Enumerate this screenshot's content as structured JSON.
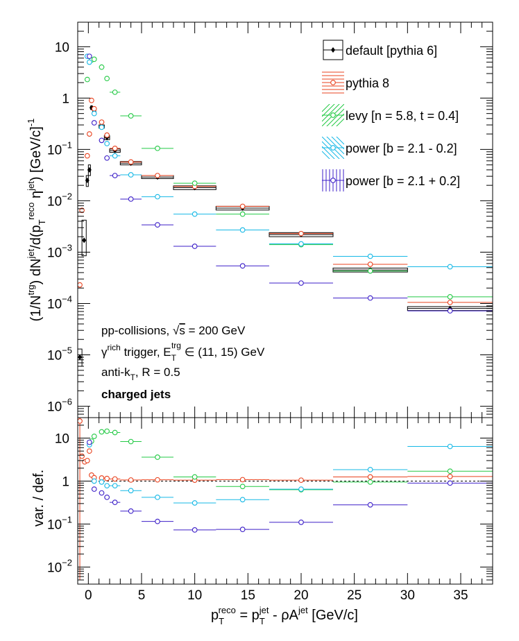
{
  "chart_data": [
    {
      "type": "scatter",
      "panel": "main",
      "ylabel": "(1/N^trg) dN^jet/d(p_T^reco η^jet) [GeV/c]^-1",
      "yscale": "log",
      "ylim": [
        6e-07,
        30
      ],
      "xlim": [
        -1,
        38
      ],
      "yticks": [
        {
          "v": 1e-06,
          "label": "10",
          "exp": "−6"
        },
        {
          "v": 1e-05,
          "label": "10",
          "exp": "−5"
        },
        {
          "v": 0.0001,
          "label": "10",
          "exp": "−4"
        },
        {
          "v": 0.001,
          "label": "10",
          "exp": "−3"
        },
        {
          "v": 0.01,
          "label": "10",
          "exp": "−2"
        },
        {
          "v": 0.1,
          "label": "10",
          "exp": "−1"
        },
        {
          "v": 1,
          "label": "1",
          "exp": ""
        },
        {
          "v": 10,
          "label": "10",
          "exp": ""
        }
      ],
      "legend": {
        "placement": "top-right",
        "entries": [
          {
            "label": "default [pythia 6]",
            "series": 0
          },
          {
            "label": "pythia 8",
            "series": 1
          },
          {
            "label": "levy [n = 5.8, t = 0.4]",
            "series": 2
          },
          {
            "label": "power [b = 2.1 - 0.2]",
            "series": 3
          },
          {
            "label": "power [b = 2.1 + 0.2]",
            "series": 4
          }
        ]
      },
      "annotations": [
        {
          "text": "pp-collisions, √s = 200 GeV"
        },
        {
          "text": "γ^rich trigger, E_T^trg ∈ (11, 15) GeV"
        },
        {
          "text": "anti-k_T, R = 0.5"
        },
        {
          "text": "charged jets",
          "bold": true
        }
      ],
      "series": [
        {
          "name": "default [pythia 6]",
          "color": "#000000",
          "marker": "filled-diamond",
          "points": [
            {
              "x": -0.8,
              "y": 9e-06,
              "xerr": 0.2,
              "sys": [
                6e-06,
                1.3e-05
              ]
            },
            {
              "x": -0.4,
              "y": 0.0017,
              "xerr": 0.2,
              "sys": [
                0.00085,
                0.0042
              ]
            },
            {
              "x": -0.1,
              "y": 0.025,
              "xerr": 0.1,
              "sys": [
                0.019,
                0.031
              ]
            },
            {
              "x": 0.1,
              "y": 0.04,
              "xerr": 0.1,
              "sys": [
                0.031,
                0.05
              ]
            },
            {
              "x": 0.3,
              "y": 0.65,
              "xerr": 0.1,
              "sys": [
                0.6,
                0.7
              ]
            },
            {
              "x": 0.55,
              "y": 0.52,
              "xerr": 0.15,
              "sys": [
                0.48,
                0.56
              ]
            },
            {
              "x": 1.25,
              "y": 0.28,
              "xerr": 0.25,
              "sys": [
                0.26,
                0.3
              ]
            },
            {
              "x": 1.75,
              "y": 0.17,
              "xerr": 0.25,
              "sys": [
                0.155,
                0.185
              ]
            },
            {
              "x": 2.5,
              "y": 0.095,
              "xerr": 0.5,
              "sys": [
                0.088,
                0.102
              ]
            },
            {
              "x": 4.0,
              "y": 0.054,
              "xerr": 1.0,
              "sys": [
                0.05,
                0.058
              ]
            },
            {
              "x": 6.5,
              "y": 0.029,
              "xerr": 1.5,
              "sys": [
                0.027,
                0.031
              ]
            },
            {
              "x": 10.0,
              "y": 0.018,
              "xerr": 2.0,
              "sys": [
                0.0165,
                0.0195
              ]
            },
            {
              "x": 14.5,
              "y": 0.0072,
              "xerr": 2.5,
              "sys": [
                0.0066,
                0.0078
              ]
            },
            {
              "x": 20.0,
              "y": 0.0022,
              "xerr": 3.0,
              "sys": [
                0.002,
                0.0024
              ]
            },
            {
              "x": 26.5,
              "y": 0.00045,
              "xerr": 3.5,
              "sys": [
                0.00041,
                0.00049
              ]
            },
            {
              "x": 34.0,
              "y": 8e-05,
              "xerr": 4.0,
              "sys": [
                7.3e-05,
                8.7e-05
              ]
            }
          ]
        },
        {
          "name": "pythia 8",
          "color": "#e8401c",
          "marker": "open-circle",
          "points": [
            {
              "x": -0.8,
              "y": 0.00023,
              "xerr": 0.2
            },
            {
              "x": -0.6,
              "y": 0.0065,
              "xerr": 0.2
            },
            {
              "x": -0.1,
              "y": 0.075,
              "xerr": 0.1
            },
            {
              "x": 0.1,
              "y": 0.2,
              "xerr": 0.1
            },
            {
              "x": 0.3,
              "y": 0.9,
              "xerr": 0.1
            },
            {
              "x": 0.55,
              "y": 0.62,
              "xerr": 0.15
            },
            {
              "x": 1.25,
              "y": 0.34,
              "xerr": 0.25
            },
            {
              "x": 1.75,
              "y": 0.19,
              "xerr": 0.25
            },
            {
              "x": 2.5,
              "y": 0.105,
              "xerr": 0.5
            },
            {
              "x": 4.0,
              "y": 0.057,
              "xerr": 1.0
            },
            {
              "x": 6.5,
              "y": 0.031,
              "xerr": 1.5
            },
            {
              "x": 10.0,
              "y": 0.019,
              "xerr": 2.0
            },
            {
              "x": 14.5,
              "y": 0.0078,
              "xerr": 2.5
            },
            {
              "x": 20.0,
              "y": 0.0023,
              "xerr": 3.0
            },
            {
              "x": 26.5,
              "y": 0.00058,
              "xerr": 3.5
            },
            {
              "x": 34.0,
              "y": 0.000105,
              "xerr": 4.0
            }
          ]
        },
        {
          "name": "levy [n = 5.8, t = 0.4]",
          "color": "#22c944",
          "marker": "open-circle",
          "points": [
            {
              "x": -0.1,
              "y": 2.3,
              "xerr": 0.1
            },
            {
              "x": 0.3,
              "y": 5.5,
              "xerr": 0.1
            },
            {
              "x": 0.55,
              "y": 5.7,
              "xerr": 0.15
            },
            {
              "x": 1.25,
              "y": 4.0,
              "xerr": 0.25
            },
            {
              "x": 1.75,
              "y": 2.4,
              "xerr": 0.25
            },
            {
              "x": 2.5,
              "y": 1.3,
              "xerr": 0.5
            },
            {
              "x": 4.0,
              "y": 0.45,
              "xerr": 1.0
            },
            {
              "x": 6.5,
              "y": 0.105,
              "xerr": 1.5
            },
            {
              "x": 10.0,
              "y": 0.022,
              "xerr": 2.0
            },
            {
              "x": 14.5,
              "y": 0.0055,
              "xerr": 2.5
            },
            {
              "x": 20.0,
              "y": 0.0014,
              "xerr": 3.0
            },
            {
              "x": 26.5,
              "y": 0.00043,
              "xerr": 3.5
            },
            {
              "x": 34.0,
              "y": 0.000135,
              "xerr": 4.0
            }
          ]
        },
        {
          "name": "power [b = 2.1 - 0.2]",
          "color": "#14b8e6",
          "marker": "open-circle",
          "points": [
            {
              "x": -0.1,
              "y": 6.5,
              "xerr": 0.1
            },
            {
              "x": 0.1,
              "y": 5.0,
              "xerr": 0.1
            },
            {
              "x": 0.55,
              "y": 0.5,
              "xerr": 0.15
            },
            {
              "x": 1.25,
              "y": 0.27,
              "xerr": 0.25
            },
            {
              "x": 1.75,
              "y": 0.13,
              "xerr": 0.25
            },
            {
              "x": 2.5,
              "y": 0.075,
              "xerr": 0.5
            },
            {
              "x": 4.0,
              "y": 0.032,
              "xerr": 1.0
            },
            {
              "x": 6.5,
              "y": 0.012,
              "xerr": 1.5
            },
            {
              "x": 10.0,
              "y": 0.0055,
              "xerr": 2.0
            },
            {
              "x": 14.5,
              "y": 0.0027,
              "xerr": 2.5
            },
            {
              "x": 20.0,
              "y": 0.00145,
              "xerr": 3.0
            },
            {
              "x": 26.5,
              "y": 0.00083,
              "xerr": 3.5
            },
            {
              "x": 34.0,
              "y": 0.00052,
              "xerr": 4.0
            }
          ]
        },
        {
          "name": "power [b = 2.1 + 0.2]",
          "color": "#3b1ec8",
          "marker": "open-circle",
          "points": [
            {
              "x": 0.1,
              "y": 6.5,
              "xerr": 0.1
            },
            {
              "x": 0.55,
              "y": 0.33,
              "xerr": 0.15
            },
            {
              "x": 1.25,
              "y": 0.15,
              "xerr": 0.25
            },
            {
              "x": 1.75,
              "y": 0.068,
              "xerr": 0.25
            },
            {
              "x": 2.5,
              "y": 0.031,
              "xerr": 0.5
            },
            {
              "x": 4.0,
              "y": 0.0108,
              "xerr": 1.0
            },
            {
              "x": 6.5,
              "y": 0.0034,
              "xerr": 1.5
            },
            {
              "x": 10.0,
              "y": 0.0013,
              "xerr": 2.0
            },
            {
              "x": 14.5,
              "y": 0.00054,
              "xerr": 2.5
            },
            {
              "x": 20.0,
              "y": 0.00025,
              "xerr": 3.0
            },
            {
              "x": 26.5,
              "y": 0.000128,
              "xerr": 3.5
            },
            {
              "x": 34.0,
              "y": 7.2e-05,
              "xerr": 4.0
            }
          ]
        }
      ]
    },
    {
      "type": "scatter",
      "panel": "ratio",
      "xlabel": "p_T^reco = p_T^jet - ρA^jet [GeV/c]",
      "ylabel": "var. / def.",
      "yscale": "log",
      "ylim": [
        0.004,
        30
      ],
      "xlim": [
        -1,
        38
      ],
      "reference_line": 1,
      "xticks": [
        0,
        5,
        10,
        15,
        20,
        25,
        30,
        35
      ],
      "yticks": [
        {
          "v": 0.01,
          "label": "10",
          "exp": "−2"
        },
        {
          "v": 0.1,
          "label": "10",
          "exp": "−1"
        },
        {
          "v": 1,
          "label": "1",
          "exp": ""
        },
        {
          "v": 10,
          "label": "10",
          "exp": ""
        }
      ],
      "series": [
        {
          "name": "pythia 8",
          "color": "#e8401c",
          "points": [
            {
              "x": -0.8,
              "y": 25,
              "xerr": 0.2,
              "yerr": [
                0.005,
                30
              ]
            },
            {
              "x": -0.6,
              "y": 3.8,
              "xerr": 0.2
            },
            {
              "x": -0.35,
              "y": 2.8,
              "xerr": 0.15
            },
            {
              "x": -0.1,
              "y": 3.0,
              "xerr": 0.1
            },
            {
              "x": 0.1,
              "y": 5.0,
              "xerr": 0.1
            },
            {
              "x": 0.3,
              "y": 1.38,
              "xerr": 0.1
            },
            {
              "x": 0.55,
              "y": 1.2,
              "xerr": 0.15
            },
            {
              "x": 1.25,
              "y": 1.18,
              "xerr": 0.25
            },
            {
              "x": 1.75,
              "y": 1.15,
              "xerr": 0.25
            },
            {
              "x": 2.5,
              "y": 1.12,
              "xerr": 0.5
            },
            {
              "x": 4.0,
              "y": 1.06,
              "xerr": 1.0
            },
            {
              "x": 6.5,
              "y": 1.07,
              "xerr": 1.5
            },
            {
              "x": 10.0,
              "y": 1.05,
              "xerr": 2.0
            },
            {
              "x": 14.5,
              "y": 1.08,
              "xerr": 2.5
            },
            {
              "x": 20.0,
              "y": 1.05,
              "xerr": 3.0
            },
            {
              "x": 26.5,
              "y": 1.25,
              "xerr": 3.5
            },
            {
              "x": 34.0,
              "y": 1.28,
              "xerr": 4.0
            }
          ]
        },
        {
          "name": "levy [n = 5.8, t = 0.4]",
          "color": "#22c944",
          "points": [
            {
              "x": 0.3,
              "y": 8.5,
              "xerr": 0.1
            },
            {
              "x": 0.55,
              "y": 11.0,
              "xerr": 0.15
            },
            {
              "x": 1.25,
              "y": 14.0,
              "xerr": 0.25
            },
            {
              "x": 1.75,
              "y": 14.5,
              "xerr": 0.25
            },
            {
              "x": 2.5,
              "y": 13.5,
              "xerr": 0.5
            },
            {
              "x": 4.0,
              "y": 8.3,
              "xerr": 1.0
            },
            {
              "x": 6.5,
              "y": 3.6,
              "xerr": 1.5
            },
            {
              "x": 10.0,
              "y": 1.25,
              "xerr": 2.0
            },
            {
              "x": 14.5,
              "y": 0.75,
              "xerr": 2.5
            },
            {
              "x": 20.0,
              "y": 0.63,
              "xerr": 3.0
            },
            {
              "x": 26.5,
              "y": 0.95,
              "xerr": 3.5
            },
            {
              "x": 34.0,
              "y": 1.7,
              "xerr": 4.0
            }
          ]
        },
        {
          "name": "power [b = 2.1 - 0.2]",
          "color": "#14b8e6",
          "points": [
            {
              "x": 0.1,
              "y": 7.0,
              "xerr": 0.1
            },
            {
              "x": 0.55,
              "y": 1.0,
              "xerr": 0.15
            },
            {
              "x": 1.25,
              "y": 0.95,
              "xerr": 0.25
            },
            {
              "x": 1.75,
              "y": 0.78,
              "xerr": 0.25
            },
            {
              "x": 2.5,
              "y": 0.78,
              "xerr": 0.5
            },
            {
              "x": 4.0,
              "y": 0.6,
              "xerr": 1.0
            },
            {
              "x": 6.5,
              "y": 0.42,
              "xerr": 1.5
            },
            {
              "x": 10.0,
              "y": 0.31,
              "xerr": 2.0
            },
            {
              "x": 14.5,
              "y": 0.37,
              "xerr": 2.5
            },
            {
              "x": 20.0,
              "y": 0.65,
              "xerr": 3.0
            },
            {
              "x": 26.5,
              "y": 1.85,
              "xerr": 3.5
            },
            {
              "x": 34.0,
              "y": 6.4,
              "xerr": 4.0
            }
          ]
        },
        {
          "name": "power [b = 2.1 + 0.2]",
          "color": "#3b1ec8",
          "points": [
            {
              "x": 0.1,
              "y": 8.0,
              "xerr": 0.1
            },
            {
              "x": 0.55,
              "y": 0.65,
              "xerr": 0.15
            },
            {
              "x": 1.25,
              "y": 0.53,
              "xerr": 0.25
            },
            {
              "x": 1.75,
              "y": 0.42,
              "xerr": 0.25
            },
            {
              "x": 2.5,
              "y": 0.32,
              "xerr": 0.5
            },
            {
              "x": 4.0,
              "y": 0.2,
              "xerr": 1.0
            },
            {
              "x": 6.5,
              "y": 0.115,
              "xerr": 1.5
            },
            {
              "x": 10.0,
              "y": 0.073,
              "xerr": 2.0
            },
            {
              "x": 14.5,
              "y": 0.075,
              "xerr": 2.5
            },
            {
              "x": 20.0,
              "y": 0.11,
              "xerr": 3.0
            },
            {
              "x": 26.5,
              "y": 0.28,
              "xerr": 3.5
            },
            {
              "x": 34.0,
              "y": 0.9,
              "xerr": 4.0
            }
          ]
        }
      ]
    }
  ]
}
